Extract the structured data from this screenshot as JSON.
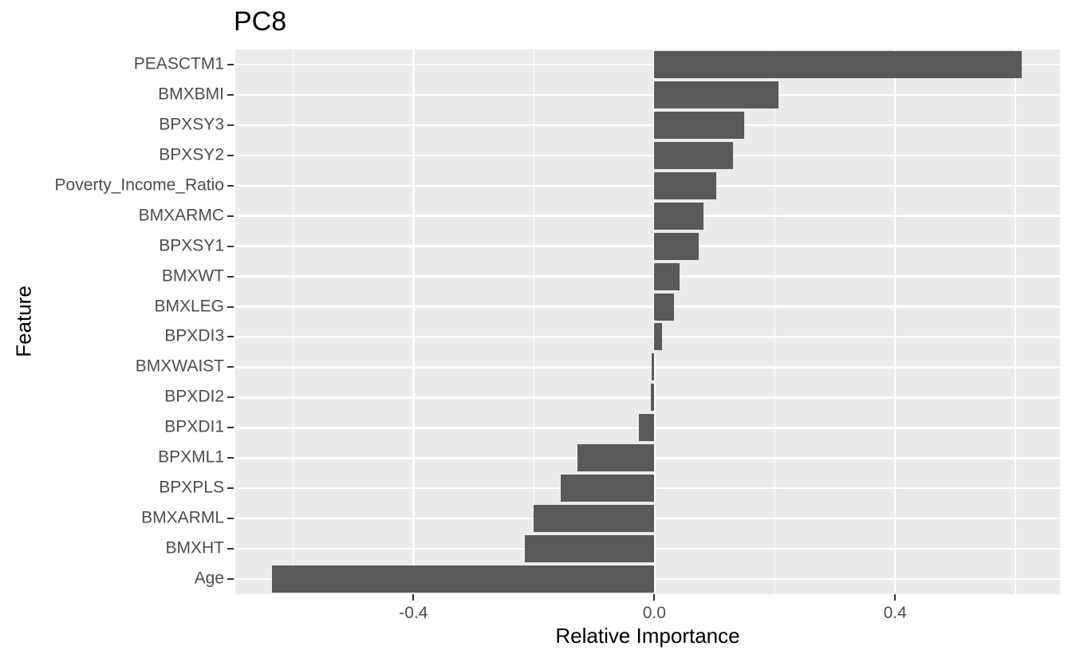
{
  "chart_data": {
    "type": "bar",
    "orientation": "horizontal",
    "title": "PC8",
    "xlabel": "Relative Importance",
    "ylabel": "Feature",
    "categories": [
      "PEASCTM1",
      "BMXBMI",
      "BPXSY3",
      "BPXSY2",
      "Poverty_Income_Ratio",
      "BMXARMC",
      "BPXSY1",
      "BMXWT",
      "BMXLEG",
      "BPXDI3",
      "BMXWAIST",
      "BPXDI2",
      "BPXDI1",
      "BPXML1",
      "BPXPLS",
      "BMXARML",
      "BMXHT",
      "Age"
    ],
    "values": [
      0.611,
      0.206,
      0.149,
      0.131,
      0.103,
      0.082,
      0.074,
      0.042,
      0.033,
      0.013,
      -0.004,
      -0.006,
      -0.026,
      -0.128,
      -0.155,
      -0.2,
      -0.215,
      -0.635
    ],
    "xlim": [
      -0.696,
      0.674
    ],
    "x_ticks": [
      {
        "value": -0.4,
        "label": "-0.4"
      },
      {
        "value": 0.0,
        "label": "0.0"
      },
      {
        "value": 0.4,
        "label": "0.4"
      }
    ],
    "x_minor_gridlines": [
      -0.6,
      -0.2,
      0.2,
      0.6
    ],
    "grid": "on",
    "legend": "none",
    "colors": {
      "bar_fill": "#595959",
      "panel_background": "#EBEBEB",
      "gridline": "#FFFFFF",
      "tick_mark": "#333333",
      "tick_text": "#4D4D4D",
      "title_text": "#000000"
    }
  }
}
